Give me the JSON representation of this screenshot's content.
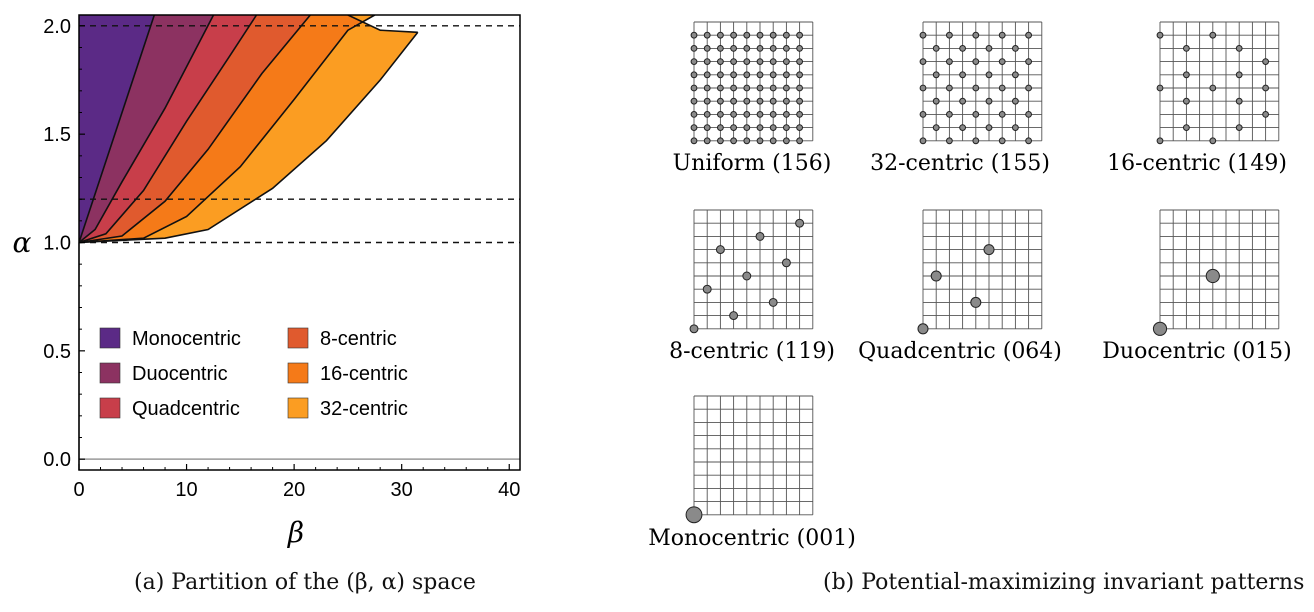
{
  "captions": {
    "left": "(a) Partition of the (β, α) space",
    "right": "(b) Potential-maximizing invariant patterns"
  },
  "chart_data": [
    {
      "type": "area",
      "xlabel": "β",
      "ylabel": "α",
      "xlim": [
        0,
        41
      ],
      "ylim": [
        -0.05,
        2.05
      ],
      "xticks": [
        "0",
        "10",
        "20",
        "30",
        "40"
      ],
      "yticks": [
        "0.0",
        "0.5",
        "1.0",
        "1.5",
        "2.0"
      ],
      "xtick_values": [
        0,
        10,
        20,
        30,
        40
      ],
      "ytick_values": [
        0.0,
        0.5,
        1.0,
        1.5,
        2.0
      ],
      "reference_lines": [
        1.0,
        1.2,
        2.0
      ],
      "grid": false,
      "legend_placement": "bottom-left",
      "series": [
        {
          "name": "Monocentric",
          "color": "#5b2a86",
          "boundary": [
            [
              0,
              1.0
            ],
            [
              7,
              2.05
            ]
          ]
        },
        {
          "name": "Duocentric",
          "color": "#8c3261",
          "boundary": [
            [
              0,
              1.0
            ],
            [
              1.5,
              1.06
            ],
            [
              4,
              1.28
            ],
            [
              8,
              1.62
            ],
            [
              12.5,
              2.05
            ]
          ]
        },
        {
          "name": "Quadcentric",
          "color": "#c83e4a",
          "boundary": [
            [
              0,
              1.0
            ],
            [
              2.5,
              1.04
            ],
            [
              6,
              1.24
            ],
            [
              10,
              1.56
            ],
            [
              14,
              1.86
            ],
            [
              16.5,
              2.05
            ]
          ]
        },
        {
          "name": "8-centric",
          "color": "#e05a2e",
          "boundary": [
            [
              0,
              1.0
            ],
            [
              4,
              1.03
            ],
            [
              8,
              1.19
            ],
            [
              12,
              1.43
            ],
            [
              17,
              1.78
            ],
            [
              21.5,
              2.05
            ]
          ]
        },
        {
          "name": "16-centric",
          "color": "#f57a18",
          "boundary": [
            [
              0,
              1.0
            ],
            [
              6,
              1.02
            ],
            [
              10,
              1.12
            ],
            [
              15,
              1.35
            ],
            [
              20,
              1.66
            ],
            [
              25,
              1.98
            ],
            [
              27.5,
              2.05
            ]
          ]
        },
        {
          "name": "32-centric",
          "color": "#fb9d22",
          "boundary": [
            [
              0,
              1.0
            ],
            [
              8,
              1.02
            ],
            [
              12,
              1.06
            ],
            [
              18,
              1.25
            ],
            [
              23,
              1.47
            ],
            [
              28,
              1.75
            ],
            [
              31.5,
              1.97
            ]
          ],
          "upper": [
            [
              25,
              2.05
            ],
            [
              28,
              1.98
            ],
            [
              31.5,
              1.97
            ]
          ]
        }
      ]
    },
    {
      "type": "table",
      "grid_size": 9,
      "patterns": [
        {
          "label": "Uniform (156)",
          "dots": "all",
          "dot_radius": 0.22
        },
        {
          "label": "32-centric (155)",
          "dots": "checker",
          "dot_radius": 0.22
        },
        {
          "label": "16-centric (149)",
          "dots": [
            [
              0,
              0
            ],
            [
              4,
              0
            ],
            [
              2,
              1
            ],
            [
              6,
              1
            ],
            [
              8,
              2
            ],
            [
              0,
              4
            ],
            [
              4,
              4
            ],
            [
              2,
              5
            ],
            [
              6,
              5
            ],
            [
              8,
              6
            ],
            [
              0,
              8
            ],
            [
              4,
              8
            ],
            [
              2,
              7
            ],
            [
              6,
              7
            ],
            [
              8,
              4
            ],
            [
              2,
              3
            ],
            [
              6,
              3
            ]
          ],
          "dot_radius": 0.22
        },
        {
          "label": "8-centric (119)",
          "dots": [
            [
              0,
              0
            ],
            [
              3,
              1
            ],
            [
              6,
              2
            ],
            [
              1,
              3
            ],
            [
              4,
              4
            ],
            [
              7,
              5
            ],
            [
              2,
              6
            ],
            [
              5,
              7
            ],
            [
              8,
              8
            ]
          ],
          "dot_radius": 0.3
        },
        {
          "label": "Quadcentric (064)",
          "dots": [
            [
              0,
              0
            ],
            [
              4,
              2
            ],
            [
              1,
              4
            ],
            [
              5,
              6
            ]
          ],
          "dot_radius": 0.38
        },
        {
          "label": "Duocentric (015)",
          "dots": [
            [
              0,
              0
            ],
            [
              4,
              4
            ]
          ],
          "dot_radius": 0.5
        },
        {
          "label": "Monocentric (001)",
          "dots": [
            [
              0,
              0
            ]
          ],
          "dot_radius": 0.6
        }
      ]
    }
  ]
}
